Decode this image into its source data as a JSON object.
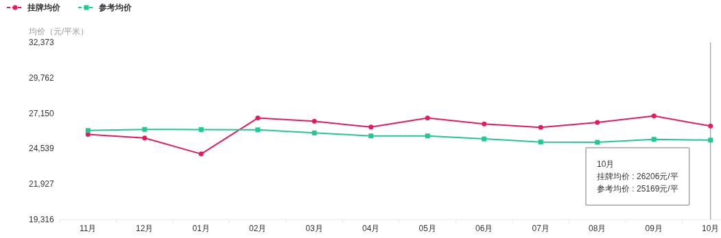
{
  "chart_data": {
    "type": "line",
    "ylabel": "均价（元/平米）",
    "categories": [
      "11月",
      "12月",
      "01月",
      "02月",
      "03月",
      "04月",
      "05月",
      "06月",
      "07月",
      "08月",
      "09月",
      "10月"
    ],
    "series": [
      {
        "name": "挂牌均价",
        "color": "#e8195a",
        "marker": "circle",
        "values": [
          25590,
          25330,
          24150,
          26800,
          26560,
          26130,
          26800,
          26360,
          26110,
          26480,
          26950,
          26206
        ]
      },
      {
        "name": "参考均价",
        "color": "#21c98f",
        "marker": "square",
        "values": [
          25880,
          25960,
          25950,
          25930,
          25700,
          25480,
          25480,
          25260,
          25030,
          25010,
          25230,
          25169
        ]
      }
    ],
    "ylim": [
      19316,
      32373
    ],
    "yticks": [
      {
        "value": 19316,
        "label": "19,316"
      },
      {
        "value": 21927,
        "label": "21,927"
      },
      {
        "value": 24539,
        "label": "24,539"
      },
      {
        "value": 27150,
        "label": "27,150"
      },
      {
        "value": 29762,
        "label": "29,762"
      },
      {
        "value": 32373,
        "label": "32,373"
      }
    ],
    "legend": "top left",
    "line_style": "solid",
    "ref_lines": [
      {
        "axis": "x",
        "value": "10月",
        "color": "#888888"
      }
    ],
    "annotations": [
      "10月",
      "挂牌均价 : 26206元/平",
      "参考均价 : 25169元/平"
    ]
  }
}
